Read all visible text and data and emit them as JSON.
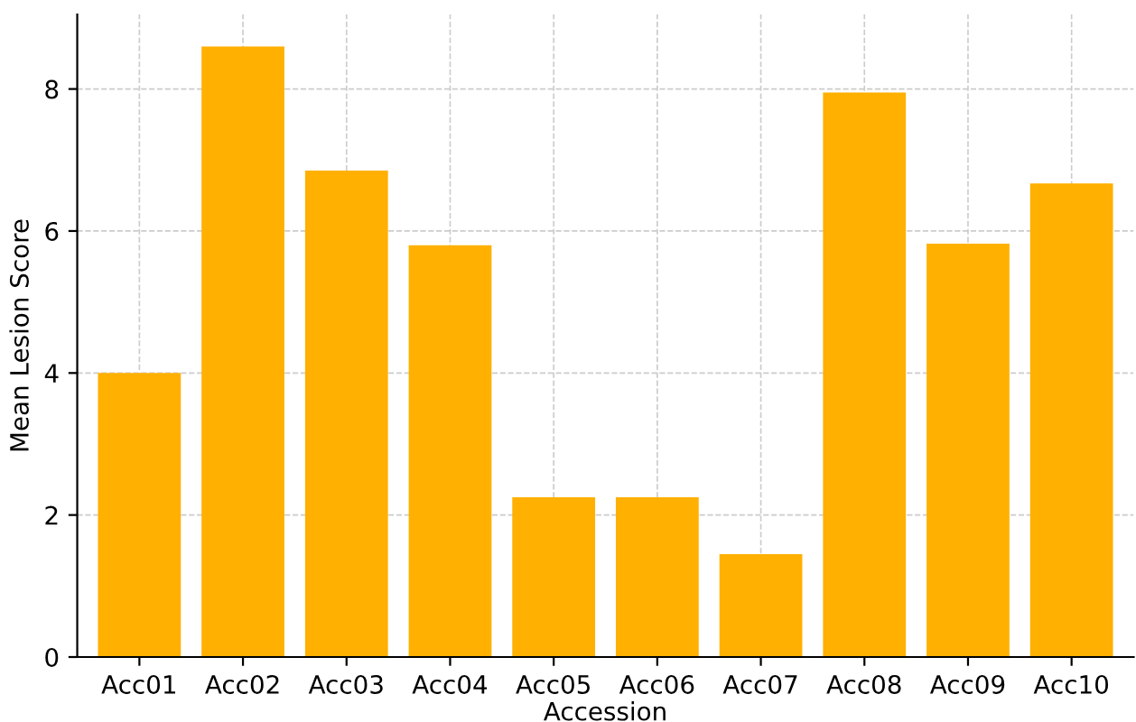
{
  "chart_data": {
    "type": "bar",
    "xlabel": "Accession",
    "ylabel": "Mean Lesion Score",
    "categories": [
      "Acc01",
      "Acc02",
      "Acc03",
      "Acc04",
      "Acc05",
      "Acc06",
      "Acc07",
      "Acc08",
      "Acc09",
      "Acc10"
    ],
    "values": [
      4.0,
      8.6,
      6.85,
      5.8,
      2.25,
      2.25,
      1.45,
      7.95,
      5.82,
      6.67
    ],
    "color": "#ffb000",
    "ylim": [
      0,
      9.05
    ],
    "yticks": [
      0,
      2,
      4,
      6,
      8
    ],
    "grid": true
  }
}
